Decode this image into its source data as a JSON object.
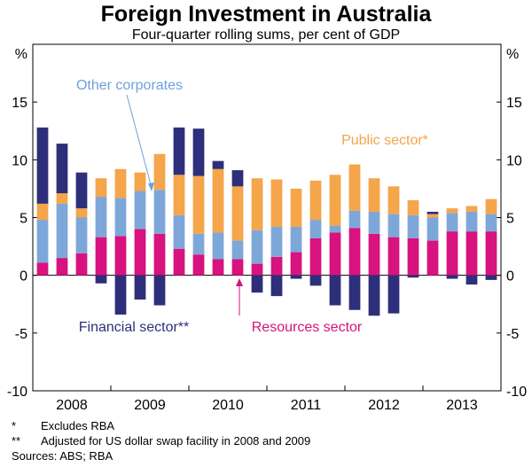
{
  "chart_data": {
    "type": "bar",
    "stacked": true,
    "title": "Foreign Investment in Australia",
    "subtitle": "Four-quarter rolling sums, per cent of GDP",
    "ylabel_left": "%",
    "ylabel_right": "%",
    "ylim": [
      -10,
      20
    ],
    "yticks": [
      -10,
      -5,
      0,
      5,
      10,
      15
    ],
    "year_labels": [
      "2008",
      "2009",
      "2010",
      "2011",
      "2012",
      "2013"
    ],
    "quarters": [
      "2007-Q4",
      "2008-Q1",
      "2008-Q2",
      "2008-Q3",
      "2008-Q4",
      "2009-Q1",
      "2009-Q2",
      "2009-Q3",
      "2009-Q4",
      "2010-Q1",
      "2010-Q2",
      "2010-Q3",
      "2010-Q4",
      "2011-Q1",
      "2011-Q2",
      "2011-Q3",
      "2011-Q4",
      "2012-Q1",
      "2012-Q2",
      "2012-Q3",
      "2012-Q4",
      "2013-Q1",
      "2013-Q2",
      "2013-Q3"
    ],
    "series": [
      {
        "name": "Resources sector",
        "color": "#d8127e",
        "values": [
          1.1,
          1.5,
          1.9,
          3.3,
          3.4,
          4.0,
          3.6,
          2.3,
          1.8,
          1.4,
          1.4,
          1.0,
          1.6,
          2.0,
          3.2,
          3.7,
          4.1,
          3.6,
          3.3,
          3.2,
          3.0,
          3.8,
          3.8,
          3.8
        ]
      },
      {
        "name": "Other corporates",
        "color": "#7ea7d9",
        "values": [
          3.7,
          4.7,
          3.1,
          3.5,
          3.3,
          3.3,
          3.8,
          2.9,
          1.8,
          2.3,
          1.6,
          2.9,
          2.6,
          2.2,
          1.6,
          0.6,
          1.5,
          1.9,
          2.0,
          2.0,
          2.0,
          1.6,
          1.7,
          1.5
        ]
      },
      {
        "name": "Public sector",
        "color": "#f5a54a",
        "values": [
          1.4,
          0.9,
          0.8,
          1.6,
          2.5,
          1.6,
          3.1,
          3.5,
          5.0,
          5.5,
          4.7,
          4.5,
          4.1,
          3.3,
          3.4,
          4.4,
          4.0,
          2.9,
          2.4,
          1.3,
          0.3,
          0.4,
          0.5,
          1.3
        ]
      },
      {
        "name": "Financial sector",
        "color": "#2e2f7a",
        "values": [
          6.6,
          4.3,
          3.1,
          -0.7,
          -3.4,
          -2.1,
          -2.6,
          4.1,
          4.1,
          0.7,
          1.4,
          -1.5,
          -1.8,
          -0.3,
          -0.9,
          -2.6,
          -3.0,
          -3.5,
          -3.3,
          -0.2,
          0.2,
          -0.3,
          -0.8,
          -0.4
        ]
      }
    ],
    "annotations": [
      {
        "text": "Other corporates",
        "color": "#6fa0dc"
      },
      {
        "text": "Public sector*",
        "color": "#f5a54a"
      },
      {
        "text": "Financial sector**",
        "color": "#2e2f7a"
      },
      {
        "text": "Resources sector",
        "color": "#d8127e"
      }
    ],
    "grid": false
  },
  "notes": [
    {
      "mark": "*",
      "text": "Excludes RBA"
    },
    {
      "mark": "**",
      "text": "Adjusted for US dollar swap facility in 2008 and 2009"
    },
    {
      "mark": "",
      "text": "Sources: ABS; RBA"
    }
  ]
}
